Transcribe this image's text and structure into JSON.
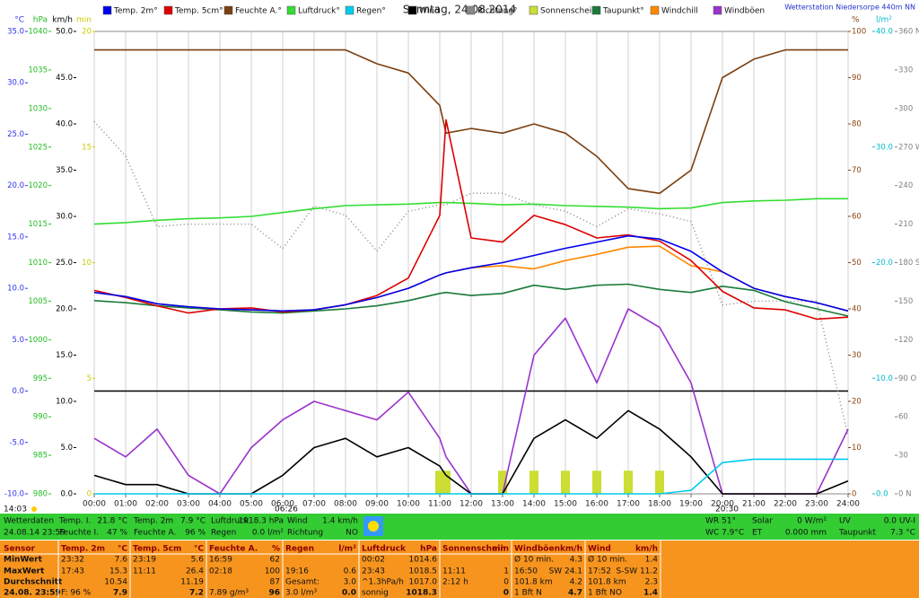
{
  "chart_data": {
    "type": "line",
    "title": "Sonntag, 24.08.2014",
    "station": "Wetterstation Niedersorpe 440m NN",
    "x": [
      0,
      1,
      2,
      3,
      4,
      5,
      6,
      7,
      8,
      9,
      10,
      11,
      11.2,
      12,
      13,
      14,
      15,
      16,
      17,
      18,
      19,
      20,
      21,
      22,
      23,
      24
    ],
    "xlim": [
      0,
      24
    ],
    "xticks": [
      {
        "value": 0,
        "label": "00:00"
      },
      {
        "value": 1,
        "label": "01:00"
      },
      {
        "value": 2,
        "label": "02:00"
      },
      {
        "value": 3,
        "label": "03:00"
      },
      {
        "value": 4,
        "label": "04:00"
      },
      {
        "value": 5,
        "label": "05:00"
      },
      {
        "value": 6,
        "label": "06:00"
      },
      {
        "value": 7,
        "label": "07:00"
      },
      {
        "value": 8,
        "label": "08:00"
      },
      {
        "value": 9,
        "label": "09:00"
      },
      {
        "value": 10,
        "label": "10:00"
      },
      {
        "value": 11,
        "label": "11:00"
      },
      {
        "value": 12,
        "label": "12:00"
      },
      {
        "value": 13,
        "label": "13:00"
      },
      {
        "value": 14,
        "label": "14:00"
      },
      {
        "value": 15,
        "label": "15:00"
      },
      {
        "value": 16,
        "label": "16:00"
      },
      {
        "value": 17,
        "label": "17:00"
      },
      {
        "value": 18,
        "label": "18:00"
      },
      {
        "value": 19,
        "label": "19:00"
      },
      {
        "value": 20,
        "label": "20:00"
      },
      {
        "value": 21,
        "label": "21:00"
      },
      {
        "value": 22,
        "label": "22:00"
      },
      {
        "value": 23,
        "label": "23:00"
      },
      {
        "value": 24,
        "label": "24:00"
      }
    ],
    "grid": true,
    "axes": [
      {
        "unit": "°C",
        "color": "#3333ee",
        "lim": [
          -10,
          35
        ],
        "ticks": [
          {
            "value": 35,
            "label": "35.0"
          },
          {
            "value": 30,
            "label": "30.0"
          },
          {
            "value": 25,
            "label": "25.0"
          },
          {
            "value": 20,
            "label": "20.0"
          },
          {
            "value": 15,
            "label": "15.0"
          },
          {
            "value": 10,
            "label": "10.0"
          },
          {
            "value": 5,
            "label": "5.0"
          },
          {
            "value": 0,
            "label": "0.0"
          },
          {
            "value": -5,
            "label": "-5.0"
          },
          {
            "value": -10,
            "label": "-10.0"
          }
        ]
      },
      {
        "unit": "hPa",
        "color": "#22bb22",
        "lim": [
          980,
          1040
        ],
        "ticks": [
          1040,
          1035,
          1030,
          1025,
          1020,
          1015,
          1010,
          1005,
          1000,
          995,
          990,
          985,
          980
        ]
      },
      {
        "unit": "km/h",
        "color": "#000000",
        "lim": [
          0,
          50
        ],
        "ticks": [
          {
            "value": 50,
            "label": "50.0"
          },
          {
            "value": 45,
            "label": "45.0"
          },
          {
            "value": 40,
            "label": "40.0"
          },
          {
            "value": 35,
            "label": "35.0"
          },
          {
            "value": 30,
            "label": "30.0"
          },
          {
            "value": 25,
            "label": "25.0"
          },
          {
            "value": 20,
            "label": "20.0"
          },
          {
            "value": 15,
            "label": "15.0"
          },
          {
            "value": 10,
            "label": "10.0"
          },
          {
            "value": 5,
            "label": "5.0"
          },
          {
            "value": 0,
            "label": "0.0"
          }
        ]
      },
      {
        "unit": "min",
        "color": "#cccc00",
        "lim": [
          0,
          20
        ],
        "ticks": [
          20,
          15,
          10,
          5,
          0
        ]
      },
      {
        "unit": "%",
        "color": "#8b4513",
        "lim": [
          0,
          100
        ],
        "ticks": [
          100,
          90,
          80,
          70,
          60,
          50,
          40,
          30,
          20,
          10,
          0
        ]
      },
      {
        "unit": "l/m²",
        "color": "#00bbcc",
        "lim": [
          0,
          40
        ],
        "ticks": [
          {
            "value": 40,
            "label": "40.0"
          },
          {
            "value": 30,
            "label": "30.0"
          },
          {
            "value": 20,
            "label": "20.0"
          },
          {
            "value": 10,
            "label": "10.0"
          },
          {
            "value": 0,
            "label": "0.0"
          }
        ]
      },
      {
        "color": "#808080",
        "lim": [
          0,
          360
        ],
        "ticks": [
          {
            "value": 360,
            "label": "360 N"
          },
          330,
          300,
          {
            "value": 270,
            "label": "270 W"
          },
          240,
          210,
          {
            "value": 180,
            "label": "180 S"
          },
          150,
          120,
          {
            "value": 90,
            "label": "90 O"
          },
          60,
          30,
          {
            "value": 0,
            "label": "0 N"
          }
        ]
      }
    ],
    "series": [
      {
        "name": "Temp. 2m°",
        "color": "#0000ee",
        "axis": 0,
        "kind": "line",
        "values": [
          9.6,
          9.2,
          8.5,
          8.2,
          8.0,
          7.9,
          7.8,
          7.9,
          8.4,
          9.1,
          10.0,
          11.3,
          11.5,
          12.0,
          12.5,
          13.2,
          13.9,
          14.5,
          15.1,
          14.8,
          13.6,
          11.6,
          10.0,
          9.2,
          8.6,
          7.8
        ]
      },
      {
        "name": "Temp. 5cm°",
        "color": "#dd0000",
        "axis": 0,
        "kind": "line",
        "values": [
          9.8,
          9.1,
          8.3,
          7.6,
          8.0,
          8.1,
          7.7,
          7.9,
          8.4,
          9.3,
          11.0,
          17.1,
          26.4,
          14.9,
          14.5,
          17.1,
          16.2,
          14.9,
          15.2,
          14.6,
          12.7,
          9.7,
          8.1,
          7.9,
          7.0,
          7.2
        ]
      },
      {
        "name": "Feuchte A.°",
        "color": "#7b3f10",
        "axis": 4,
        "kind": "line",
        "values": [
          96,
          96,
          96,
          96,
          96,
          96,
          96,
          96,
          96,
          93,
          91,
          84,
          78,
          79,
          78,
          80,
          78,
          73,
          66,
          65,
          70,
          90,
          94,
          96,
          96,
          96
        ]
      },
      {
        "name": "Luftdruck°",
        "color": "#33dd33",
        "axis": 1,
        "kind": "line",
        "values": [
          1015.0,
          1015.2,
          1015.5,
          1015.7,
          1015.8,
          1016.0,
          1016.5,
          1017.0,
          1017.4,
          1017.5,
          1017.6,
          1017.8,
          1017.8,
          1017.7,
          1017.5,
          1017.6,
          1017.4,
          1017.3,
          1017.2,
          1017.0,
          1017.1,
          1017.8,
          1018.0,
          1018.1,
          1018.3,
          1018.3
        ]
      },
      {
        "name": "Regen°",
        "color": "#00ccee",
        "axis": 5,
        "kind": "line",
        "values": [
          0,
          0,
          0,
          0,
          0,
          0,
          0,
          0,
          0,
          0,
          0,
          0,
          0,
          0,
          0,
          0,
          0,
          0,
          0,
          0,
          0.3,
          2.7,
          3.0,
          3.0,
          3.0,
          3.0
        ]
      },
      {
        "name": "Wind",
        "color": "#000000",
        "axis": 2,
        "kind": "line",
        "values": [
          2,
          1,
          1,
          0,
          0,
          0,
          2,
          5,
          6,
          4,
          5,
          3,
          2,
          0,
          0,
          6,
          8,
          6,
          9,
          7,
          4,
          0,
          0,
          0,
          0,
          1.4
        ]
      },
      {
        "name": "Richtung°",
        "color": "#888888",
        "axis": 6,
        "kind": "dots",
        "values": [
          290,
          263,
          208,
          210,
          210,
          210,
          191,
          224,
          217,
          189,
          220,
          225,
          225,
          234,
          234,
          225,
          220,
          208,
          222,
          218,
          212,
          147,
          150,
          150,
          150,
          45
        ]
      },
      {
        "name": "Sonnenschein",
        "color": "#ccdd33",
        "axis": 3,
        "kind": "bar",
        "values": [
          0,
          0,
          0,
          0,
          0,
          0,
          0,
          0,
          0,
          0,
          0,
          1,
          1,
          0,
          1,
          1,
          1,
          1,
          1,
          1,
          0,
          0,
          0,
          0,
          0,
          0
        ]
      },
      {
        "name": "Taupunkt°",
        "color": "#1a7a3a",
        "axis": 0,
        "kind": "line",
        "values": [
          8.8,
          8.6,
          8.3,
          8.1,
          7.9,
          7.7,
          7.6,
          7.8,
          8.0,
          8.3,
          8.8,
          9.5,
          9.6,
          9.3,
          9.5,
          10.3,
          9.9,
          10.3,
          10.4,
          9.9,
          9.6,
          10.2,
          9.8,
          8.7,
          8.0,
          7.3
        ]
      },
      {
        "name": "Windchill",
        "color": "#ff8800",
        "axis": 0,
        "kind": "line",
        "values": [
          9.6,
          9.2,
          8.5,
          8.2,
          8.0,
          7.9,
          7.8,
          7.9,
          8.4,
          9.1,
          10.0,
          11.3,
          11.5,
          12.0,
          12.2,
          11.9,
          12.7,
          13.3,
          14.0,
          14.1,
          12.2,
          11.6,
          10.0,
          9.2,
          8.6,
          7.8
        ]
      },
      {
        "name": "Windböen",
        "color": "#9933cc",
        "axis": 2,
        "kind": "line",
        "values": [
          6,
          4,
          7,
          2,
          0,
          5,
          8,
          10,
          9,
          8,
          11,
          6,
          4,
          0,
          0,
          15,
          19,
          12,
          20,
          18,
          12,
          0,
          0,
          0,
          0,
          7
        ]
      }
    ],
    "sun": {
      "now": "14:03",
      "sunrise": "06:26",
      "sunset": "20:30"
    }
  },
  "status": {
    "columns": [
      {
        "rows": [
          [
            "Wetterdaten"
          ],
          [
            "24.08.14 23:59"
          ]
        ]
      },
      {
        "rows": [
          [
            "Temp. I.",
            "21.8 °C"
          ],
          [
            "Feuchte I.",
            "47 %"
          ]
        ]
      },
      {
        "rows": [
          [
            "Temp. 2m",
            "7.9 °C"
          ],
          [
            "Feuchte A.",
            "96 %"
          ]
        ]
      },
      {
        "rows": [
          [
            "Luftdruck",
            "1018.3 hPa"
          ],
          [
            "Regen",
            "0.0 l/m²"
          ]
        ]
      },
      {
        "rows": [
          [
            "Wind",
            "1.4 km/h"
          ],
          [
            "Richtung",
            "NO"
          ]
        ]
      },
      {
        "rows": [
          [
            "WR 51°"
          ],
          [
            "WC 7.9°C"
          ]
        ]
      },
      {
        "rows": [
          [
            "Solar",
            "0 W/m²"
          ],
          [
            "ET",
            "0.000 mm"
          ]
        ]
      },
      {
        "rows": [
          [
            "UV",
            "0.0 UV-I"
          ],
          [
            "Taupunkt",
            "7.3 °C"
          ]
        ]
      }
    ]
  },
  "summary_table": {
    "row_labels": [
      "Sensor",
      "MinWert",
      "MaxWert",
      "Durchschnitt",
      "24.08. 23:59"
    ],
    "columns": [
      {
        "name": "Temp. 2m",
        "unit": "°C",
        "cells": [
          [
            "23:32",
            "7.6"
          ],
          [
            "17:43",
            "15.3"
          ],
          [
            null,
            "10.54"
          ],
          [
            "F: 96 %",
            "7.9"
          ]
        ]
      },
      {
        "name": "Temp. 5cm",
        "unit": "°C",
        "cells": [
          [
            "23:19",
            "5.6"
          ],
          [
            "11:11",
            "26.4"
          ],
          [
            null,
            "11.19"
          ],
          [
            null,
            "7.2"
          ]
        ]
      },
      {
        "name": "Feuchte A.",
        "unit": "%",
        "cells": [
          [
            "16:59",
            "62"
          ],
          [
            "02:18",
            "100"
          ],
          [
            null,
            "87"
          ],
          [
            "7.89 g/m³",
            "96"
          ]
        ]
      },
      {
        "name": "Regen",
        "unit": "l/m²",
        "cells": [
          [
            null,
            null
          ],
          [
            "19:16",
            "0.6"
          ],
          [
            "Gesamt:",
            "3.0"
          ],
          [
            "3.0 l/m³",
            "0.0"
          ]
        ]
      },
      {
        "name": "Luftdruck",
        "unit": "hPa",
        "cells": [
          [
            "00:02",
            "1014.6"
          ],
          [
            "23:43",
            "1018.5"
          ],
          [
            "^1.3hPa/h",
            "1017.0"
          ],
          [
            "sonnig",
            "1018.3"
          ]
        ]
      },
      {
        "name": "Sonnenschein",
        "unit": "min",
        "cells": [
          [
            null,
            null
          ],
          [
            "11:11",
            "1"
          ],
          [
            "2:12 h",
            "0"
          ],
          [
            null,
            "0"
          ]
        ]
      },
      {
        "name": "Windböen",
        "unit": "km/h",
        "cells": [
          [
            "Ø 10 min.",
            "4.3"
          ],
          [
            "16:50",
            "SW 24.1"
          ],
          [
            "101.8 km",
            "4.2"
          ],
          [
            "1 Bft N",
            "4.7"
          ]
        ]
      },
      {
        "name": "Wind",
        "unit": "km/h",
        "cells": [
          [
            "Ø 10 min.",
            "1.4"
          ],
          [
            "17:52",
            "S-SW 11.2"
          ],
          [
            "101.8 km",
            "2.3"
          ],
          [
            "1 Bft NO",
            "1.4"
          ]
        ]
      }
    ]
  }
}
